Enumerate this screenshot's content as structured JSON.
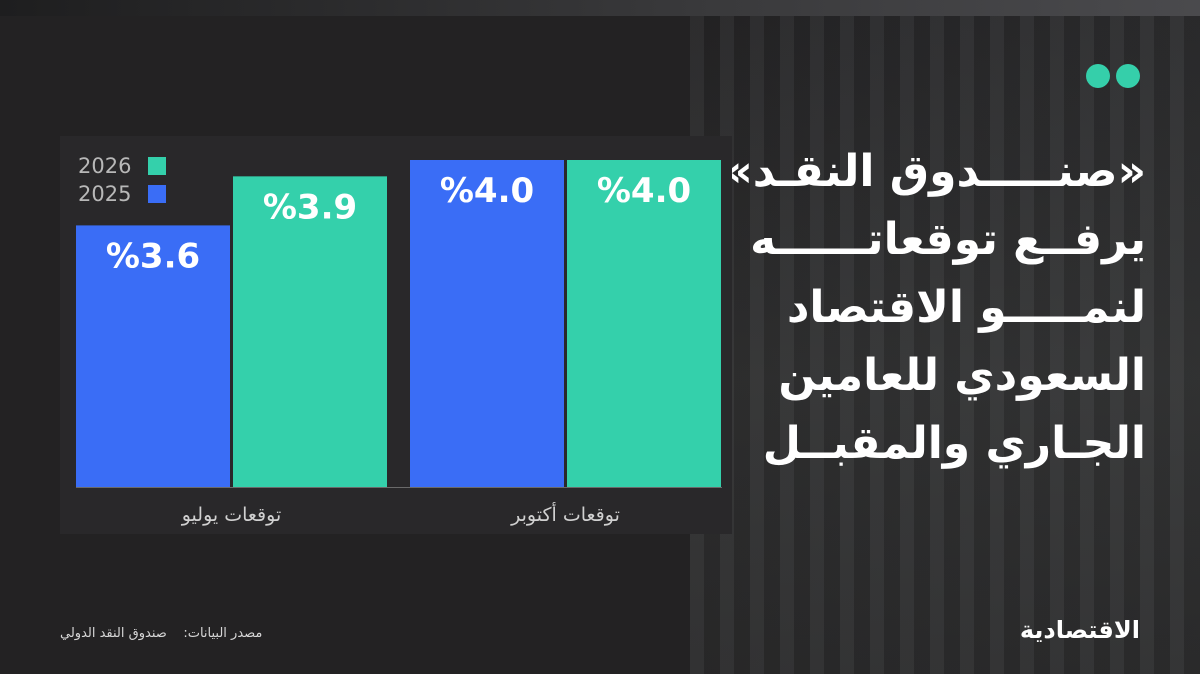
{
  "headline": {
    "lines": [
      "«صنـــــدوق النقـد»",
      "يرفــع توقعاتــــــه",
      "لنمـــــو الاقتصاد",
      "السعودي للعامين",
      "الجـاري والمقبــل"
    ]
  },
  "source": {
    "label": "مصدر البيانات:",
    "value": "صندوق النقد الدولي"
  },
  "logo": {
    "text": "الاقتصادية"
  },
  "colors": {
    "series_2025": "#3a6df6",
    "series_2026": "#34d0ab",
    "accent_dots": "#35cfaa"
  },
  "chart_data": {
    "type": "bar",
    "categories": [
      "توقعات يوليو",
      "توقعات أكتوبر"
    ],
    "series": [
      {
        "name": "2025",
        "values": [
          3.6,
          4.0
        ],
        "labels": [
          "%3.6",
          "%4.0"
        ]
      },
      {
        "name": "2026",
        "values": [
          3.9,
          4.0
        ],
        "labels": [
          "%3.9",
          "%4.0"
        ]
      }
    ],
    "legend": [
      "2026",
      "2025"
    ],
    "legend_position": "top-left",
    "ylim": [
      2.0,
      4.0
    ],
    "grid": false
  }
}
